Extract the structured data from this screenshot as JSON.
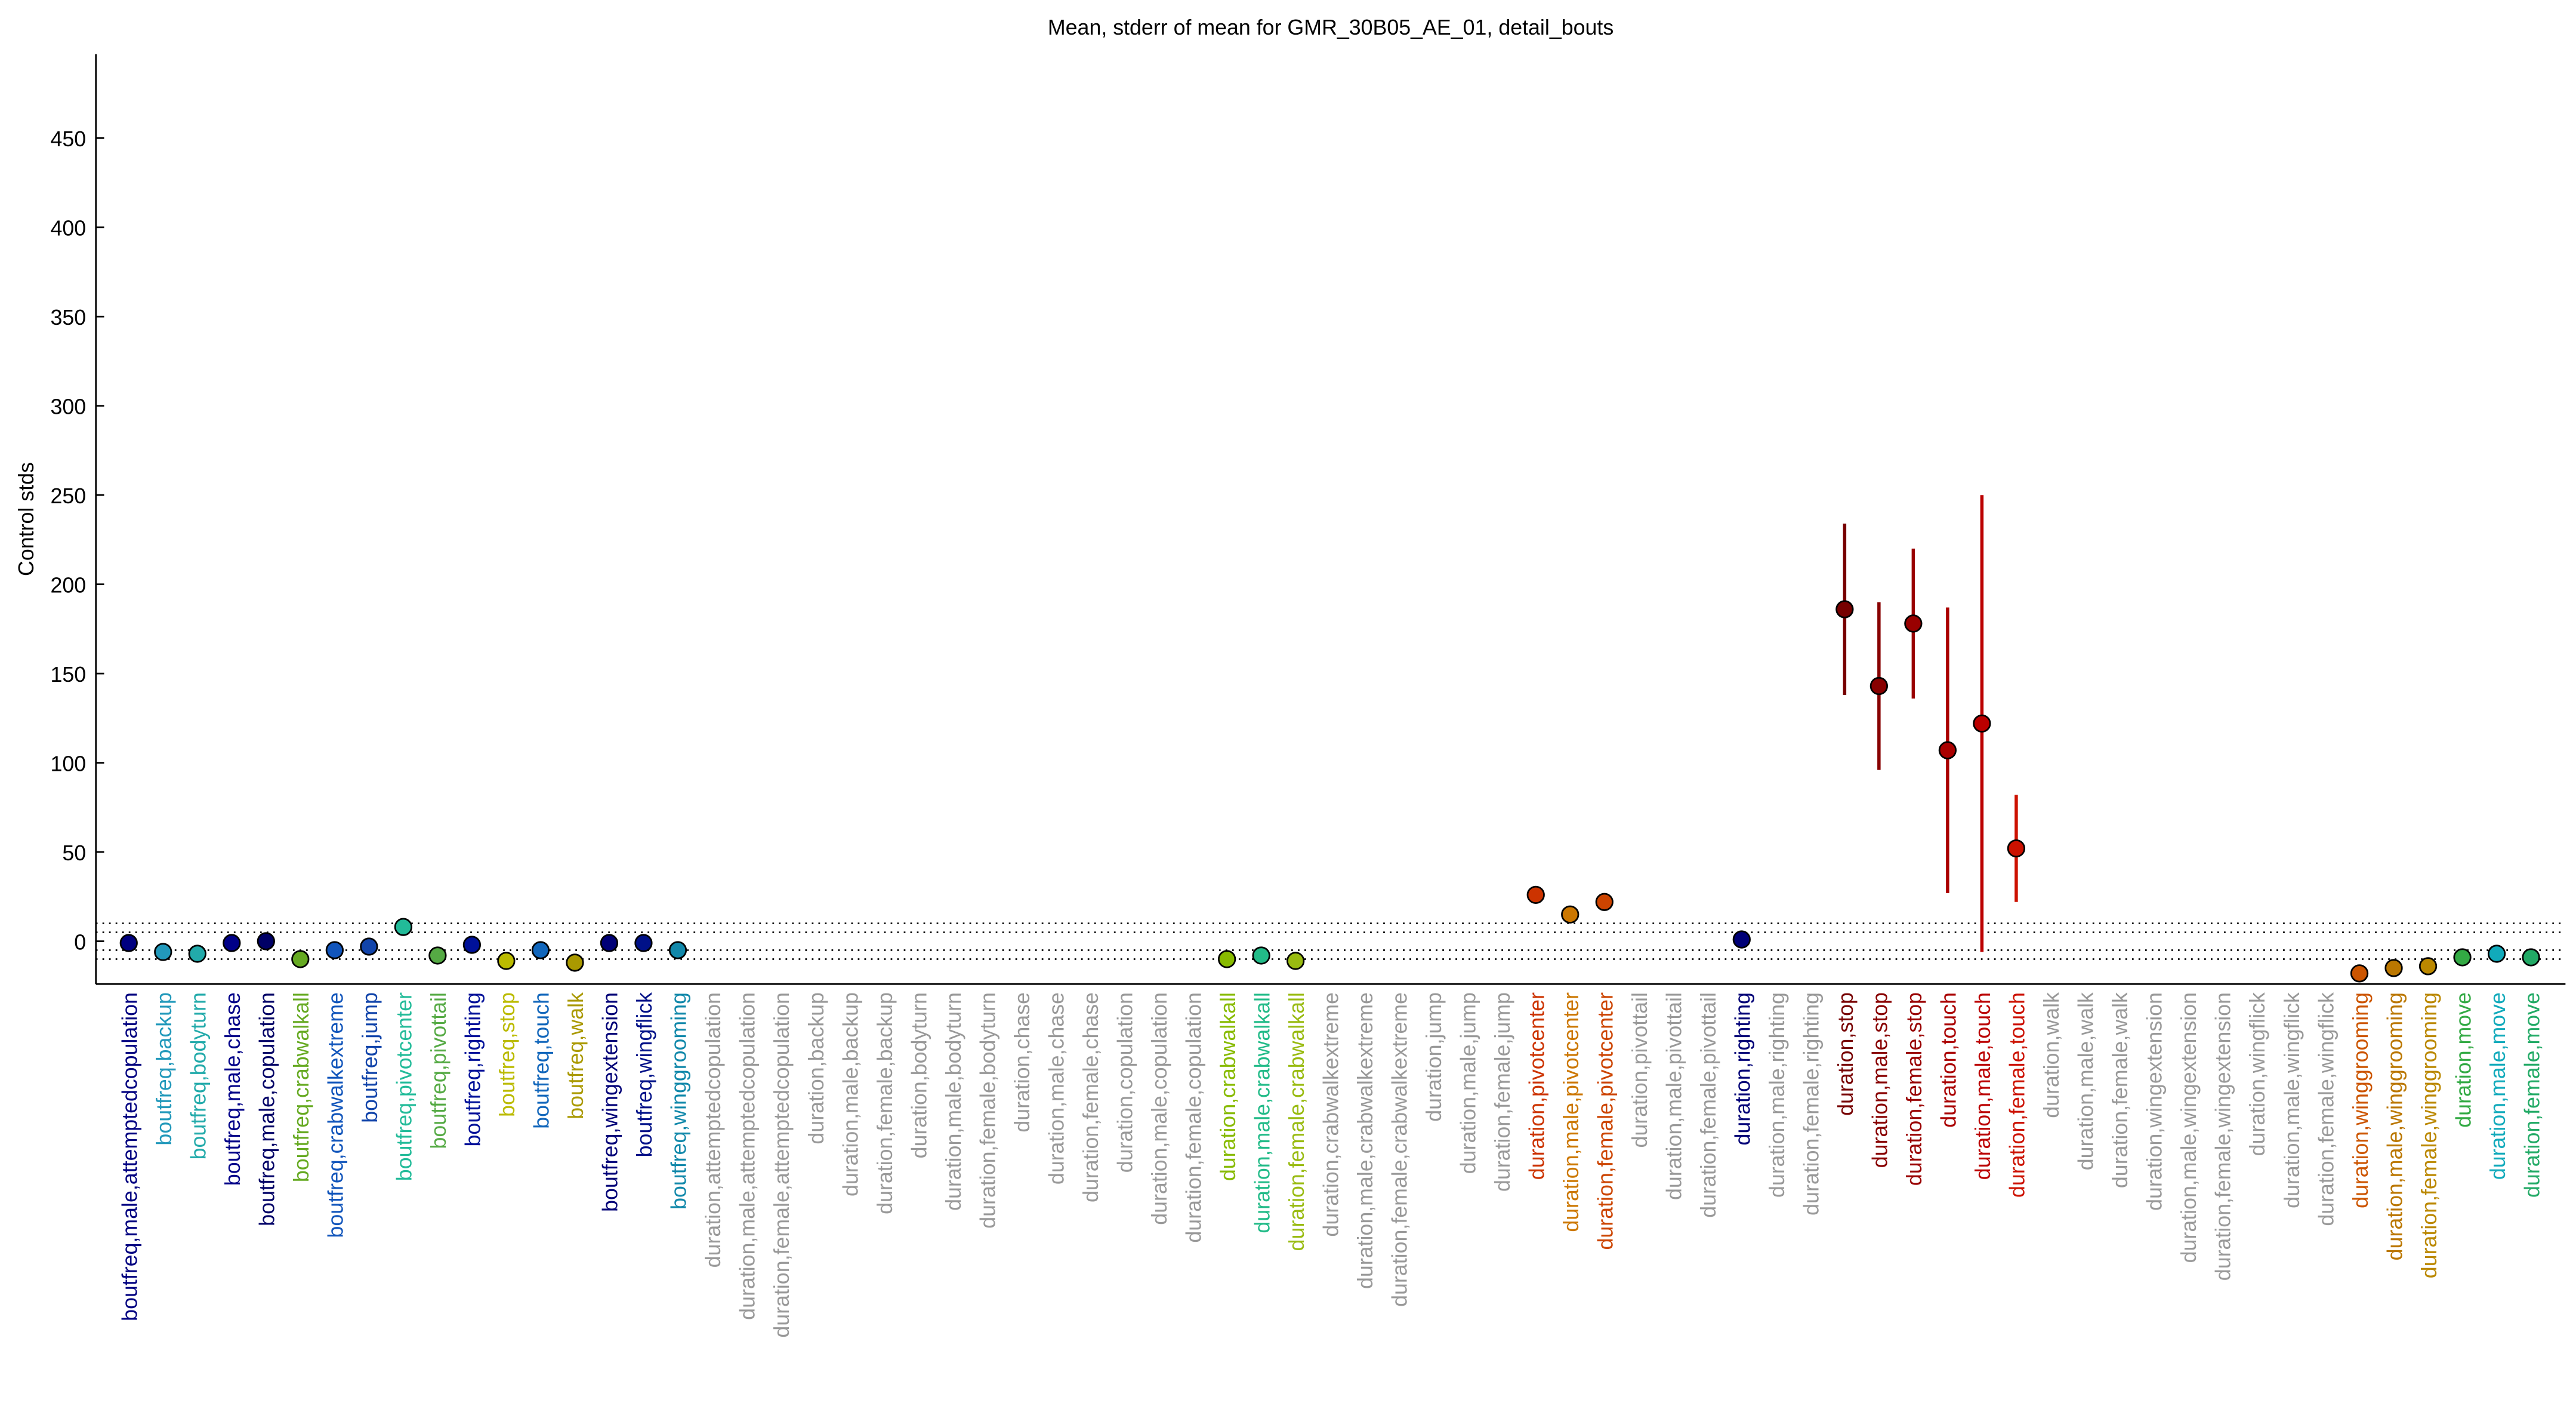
{
  "chart_data": {
    "type": "errorbar",
    "title": "Mean, stderr of mean for GMR_30B05_AE_01, detail_bouts",
    "y_label": "Control stds",
    "categories": [
      "boutfreq,male,attemptedcopulation",
      "boutfreq,backup",
      "boutfreq,bodyturn",
      "boutfreq,male,chase",
      "boutfreq,male,copulation",
      "boutfreq,crabwalkall",
      "boutfreq,crabwalkextreme",
      "boutfreq,jump",
      "boutfreq,pivotcenter",
      "boutfreq,pivottail",
      "boutfreq,righting",
      "boutfreq,stop",
      "boutfreq,touch",
      "boutfreq,walk",
      "boutfreq,wingextension",
      "boutfreq,wingflick",
      "boutfreq,winggrooming",
      "duration,attemptedcopulation",
      "duration,male,attemptedcopulation",
      "duration,female,attemptedcopulation",
      "duration,backup",
      "duration,male,backup",
      "duration,female,backup",
      "duration,bodyturn",
      "duration,male,bodyturn",
      "duration,female,bodyturn",
      "duration,chase",
      "duration,male,chase",
      "duration,female,chase",
      "duration,copulation",
      "duration,male,copulation",
      "duration,female,copulation",
      "duration,crabwalkall",
      "duration,male,crabwalkall",
      "duration,female,crabwalkall",
      "duration,crabwalkextreme",
      "duration,male,crabwalkextreme",
      "duration,female,crabwalkextreme",
      "duration,jump",
      "duration,male,jump",
      "duration,female,jump",
      "duration,pivotcenter",
      "duration,male,pivotcenter",
      "duration,female,pivotcenter",
      "duration,pivottail",
      "duration,male,pivottail",
      "duration,female,pivottail",
      "duration,righting",
      "duration,male,righting",
      "duration,female,righting",
      "duration,stop",
      "duration,male,stop",
      "duration,female,stop",
      "duration,touch",
      "duration,male,touch",
      "duration,female,touch",
      "duration,walk",
      "duration,male,walk",
      "duration,female,walk",
      "duration,wingextension",
      "duration,male,wingextension",
      "duration,female,wingextension",
      "duration,wingflick",
      "duration,male,wingflick",
      "duration,female,wingflick",
      "duration,winggrooming",
      "duration,male,winggrooming",
      "duration,female,winggrooming",
      "duration,move",
      "duration,male,move",
      "duration,female,move"
    ],
    "values": [
      -1,
      -6,
      -7,
      -1,
      0,
      -10,
      -5,
      -3,
      8,
      -8,
      -2,
      -11,
      -5,
      -12,
      -1,
      -1,
      -5,
      null,
      null,
      null,
      null,
      null,
      null,
      null,
      null,
      null,
      null,
      null,
      null,
      null,
      null,
      null,
      -10,
      -8,
      -11,
      null,
      null,
      null,
      null,
      null,
      null,
      26,
      15,
      22,
      null,
      null,
      null,
      1,
      null,
      null,
      186,
      143,
      178,
      107,
      122,
      52,
      null,
      null,
      null,
      null,
      null,
      null,
      null,
      null,
      null,
      -18,
      -15,
      -14,
      -9,
      -7,
      -9
    ],
    "errors": [
      2,
      2,
      2,
      2,
      2,
      2,
      2,
      2,
      2,
      2,
      2,
      2,
      2,
      2,
      2,
      2,
      2,
      null,
      null,
      null,
      null,
      null,
      null,
      null,
      null,
      null,
      null,
      null,
      null,
      null,
      null,
      null,
      2,
      2,
      2,
      null,
      null,
      null,
      null,
      null,
      null,
      3,
      3,
      3,
      null,
      null,
      null,
      2,
      null,
      null,
      48,
      47,
      42,
      80,
      128,
      30,
      null,
      null,
      null,
      null,
      null,
      null,
      null,
      null,
      null,
      2,
      2,
      2,
      2,
      2,
      2
    ],
    "colors": [
      "#000080",
      "#2299bb",
      "#22aaaa",
      "#000088",
      "#000066",
      "#66aa22",
      "#1155bb",
      "#1144aa",
      "#22bb99",
      "#55aa44",
      "#001199",
      "#bbbb00",
      "#1166bb",
      "#aa9900",
      "#000077",
      "#001188",
      "#1188aa",
      "#999999",
      "#999999",
      "#999999",
      "#999999",
      "#999999",
      "#999999",
      "#999999",
      "#999999",
      "#999999",
      "#999999",
      "#999999",
      "#999999",
      "#999999",
      "#999999",
      "#999999",
      "#88bb00",
      "#22bb88",
      "#99bb11",
      "#999999",
      "#999999",
      "#999999",
      "#999999",
      "#999999",
      "#999999",
      "#cc3300",
      "#cc7700",
      "#cc4400",
      "#999999",
      "#999999",
      "#999999",
      "#000077",
      "#999999",
      "#999999",
      "#770000",
      "#880000",
      "#990000",
      "#aa0000",
      "#bb0000",
      "#cc1100",
      "#999999",
      "#999999",
      "#999999",
      "#999999",
      "#999999",
      "#999999",
      "#999999",
      "#999999",
      "#999999",
      "#cc5500",
      "#bb7700",
      "#bb8800",
      "#33aa44",
      "#11aabb",
      "#22aa66"
    ],
    "ylim": [
      -24,
      497
    ],
    "yticks": [
      0,
      50,
      100,
      150,
      200,
      250,
      300,
      350,
      400,
      450
    ],
    "reference_lines": [
      -10,
      -5,
      5,
      10
    ]
  }
}
